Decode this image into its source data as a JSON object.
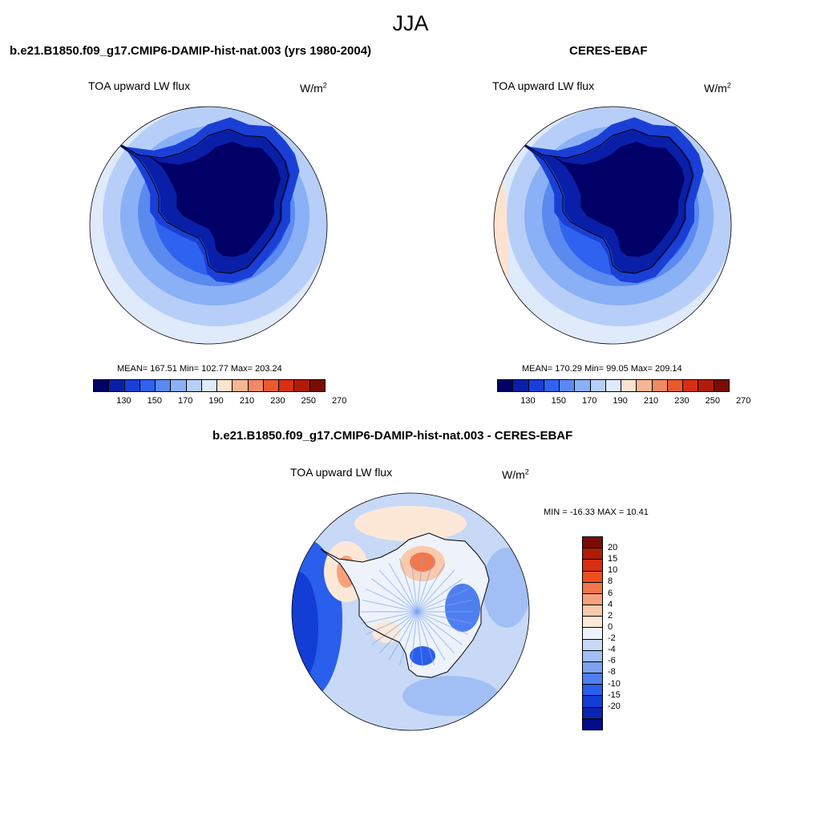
{
  "title": "JJA",
  "units_base": "W/m",
  "units_exp": "2",
  "panels": [
    {
      "title": "b.e21.B1850.f09_g17.CMIP6-DAMIP-hist-nat.003 (yrs 1980-2004)",
      "variable": "TOA upward LW flux",
      "stats": "MEAN= 167.51  Min= 102.77  Max= 203.24",
      "ticks": [
        "130",
        "150",
        "170",
        "190",
        "210",
        "230",
        "250",
        "270"
      ]
    },
    {
      "title": "CERES-EBAF",
      "variable": "TOA upward LW flux",
      "stats": "MEAN= 170.29  Min=  99.05  Max= 209.14",
      "ticks": [
        "130",
        "150",
        "170",
        "190",
        "210",
        "230",
        "250",
        "270"
      ]
    },
    {
      "title": "b.e21.B1850.f09_g17.CMIP6-DAMIP-hist-nat.003 - CERES-EBAF",
      "variable": "TOA upward LW flux",
      "stats": "MIN = -16.33 MAX =  10.41",
      "ticks": [
        "20",
        "15",
        "10",
        "8",
        "6",
        "4",
        "2",
        "0",
        "-2",
        "-4",
        "-6",
        "-8",
        "-10",
        "-15",
        "-20"
      ]
    }
  ],
  "colors": {
    "abs_scale": [
      "#000066",
      "#0a1fa8",
      "#1a3fd6",
      "#2f62ee",
      "#5a8af0",
      "#8ab0f5",
      "#b7cff8",
      "#dfeafb",
      "#fde2cf",
      "#f7b593",
      "#f08a63",
      "#e95a2f",
      "#d82e12",
      "#b01c08",
      "#7a0c03"
    ],
    "diff_scale": [
      "#7a0c03",
      "#b01c08",
      "#d82e12",
      "#ee4f1c",
      "#f3774a",
      "#f7a17c",
      "#fbc9ab",
      "#fde8d8",
      "#eef3fb",
      "#c7d9f7",
      "#a1bff4",
      "#7ca3f2",
      "#4f7fef",
      "#2a5eec",
      "#123ed5",
      "#0a25b0",
      "#000c88"
    ],
    "coast": "#000000"
  }
}
